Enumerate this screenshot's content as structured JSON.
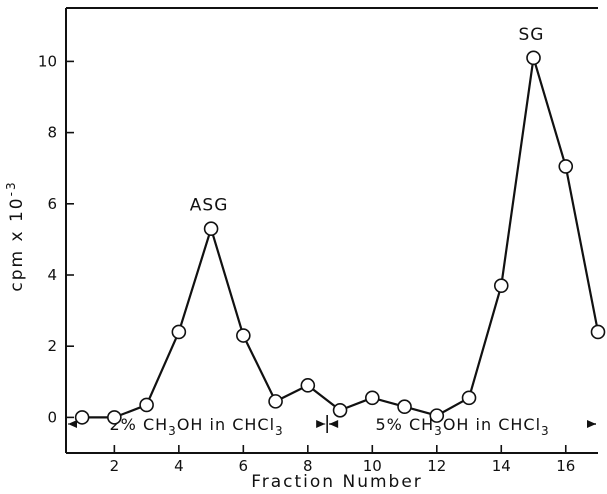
{
  "chart_data": {
    "type": "line",
    "xlabel": "Fraction Number",
    "ylabel": "cpm x 10",
    "ylabel_exponent": "-3",
    "xlim": [
      0.5,
      17
    ],
    "ylim": [
      -1,
      11.5
    ],
    "xticks": [
      2,
      4,
      6,
      8,
      10,
      12,
      14,
      16
    ],
    "yticks": [
      0,
      2,
      4,
      6,
      8,
      10
    ],
    "grid": false,
    "series": [
      {
        "x": [
          1,
          2,
          3,
          4,
          5,
          6,
          7,
          8,
          9,
          10,
          11,
          12,
          13,
          14,
          15,
          16,
          17
        ],
        "y": [
          0.0,
          0.0,
          0.35,
          2.4,
          5.3,
          2.3,
          0.45,
          0.9,
          0.2,
          0.55,
          0.3,
          0.05,
          0.55,
          3.7,
          10.1,
          7.05,
          2.4
        ]
      }
    ],
    "annotations": [
      {
        "text": "ASG",
        "x": 5,
        "y": 5.3
      },
      {
        "text": "SG",
        "x": 15,
        "y": 10.1
      }
    ],
    "solvent_bands": [
      {
        "from": 0.5,
        "to": 8.6,
        "prefix": "2% CH",
        "sub1": "3",
        "mid": "OH in CHCl",
        "sub2": "3"
      },
      {
        "from": 8.6,
        "to": 17,
        "prefix": "5% CH",
        "sub1": "3",
        "mid": "OH in CHCl",
        "sub2": "3"
      }
    ]
  }
}
